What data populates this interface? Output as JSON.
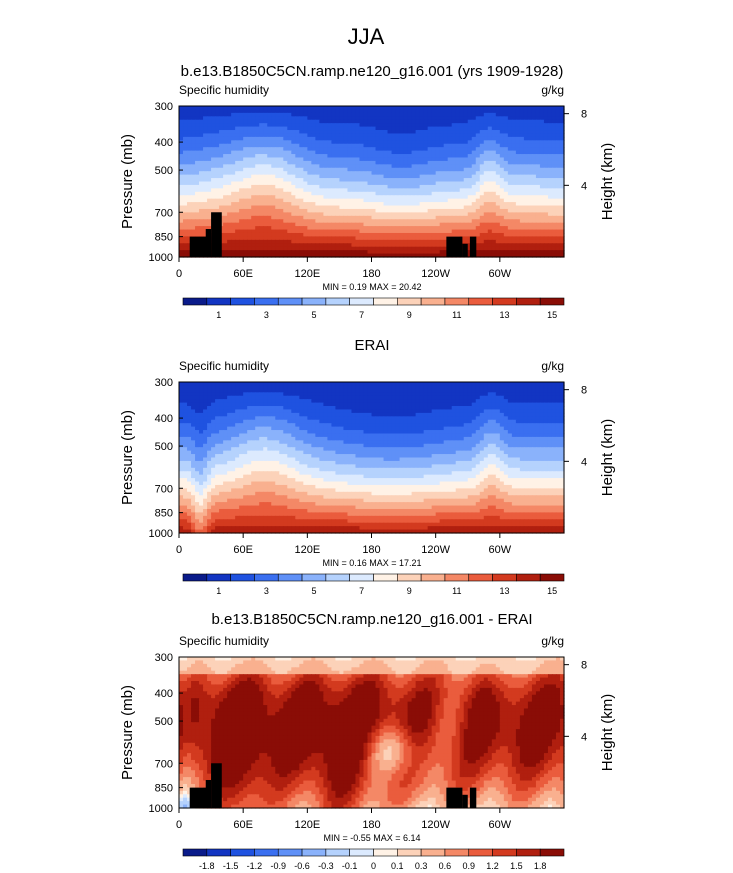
{
  "figure": {
    "title": "JJA"
  },
  "chart_data": [
    {
      "type": "heatmap",
      "title": "b.e13.B1850C5CN.ramp.ne120_g16.001 (yrs 1909-1928)",
      "left_label": "Specific humidity",
      "right_label": "g/kg",
      "ylabel": "Pressure (mb)",
      "ylabel_right": "Height (km)",
      "pressure_ticks": [
        300,
        400,
        500,
        700,
        850,
        1000
      ],
      "height_ticks": [
        4,
        8
      ],
      "lon_ticks": [
        "0",
        "60E",
        "120E",
        "180",
        "120W",
        "60W"
      ],
      "lon_range": [
        0,
        360
      ],
      "stats": "MIN =   0.19  MAX =  20.42",
      "colorbar": {
        "colors": [
          "#0a1b8a",
          "#1235c2",
          "#1f52e0",
          "#3a6ff0",
          "#5f90f7",
          "#8ab2fb",
          "#b5d2fd",
          "#dceafe",
          "#fff2e6",
          "#fcd2b9",
          "#f9b08f",
          "#f48866",
          "#ea5c3d",
          "#d33a1f",
          "#b01f0f",
          "#8a0d06"
        ],
        "labels": [
          "1",
          "3",
          "5",
          "7",
          "9",
          "11",
          "13",
          "15"
        ]
      },
      "value_range": [
        0.19,
        20.42
      ],
      "mask": "topography"
    },
    {
      "type": "heatmap",
      "title": "ERAI",
      "left_label": "Specific humidity",
      "right_label": "g/kg",
      "ylabel": "Pressure (mb)",
      "ylabel_right": "Height (km)",
      "pressure_ticks": [
        300,
        400,
        500,
        700,
        850,
        1000
      ],
      "height_ticks": [
        4,
        8
      ],
      "lon_ticks": [
        "0",
        "60E",
        "120E",
        "180",
        "120W",
        "60W"
      ],
      "lon_range": [
        0,
        360
      ],
      "stats": "MIN =   0.16  MAX =  17.21",
      "colorbar": {
        "colors": [
          "#0a1b8a",
          "#1235c2",
          "#1f52e0",
          "#3a6ff0",
          "#5f90f7",
          "#8ab2fb",
          "#b5d2fd",
          "#dceafe",
          "#fff2e6",
          "#fcd2b9",
          "#f9b08f",
          "#f48866",
          "#ea5c3d",
          "#d33a1f",
          "#b01f0f",
          "#8a0d06"
        ],
        "labels": [
          "1",
          "3",
          "5",
          "7",
          "9",
          "11",
          "13",
          "15"
        ]
      },
      "value_range": [
        0.16,
        17.21
      ],
      "mask": "none"
    },
    {
      "type": "heatmap",
      "title": "b.e13.B1850C5CN.ramp.ne120_g16.001 - ERAI",
      "left_label": "Specific humidity",
      "right_label": "g/kg",
      "ylabel": "Pressure (mb)",
      "ylabel_right": "Height (km)",
      "pressure_ticks": [
        300,
        400,
        500,
        700,
        850,
        1000
      ],
      "height_ticks": [
        4,
        8
      ],
      "lon_ticks": [
        "0",
        "60E",
        "120E",
        "180",
        "120W",
        "60W"
      ],
      "lon_range": [
        0,
        360
      ],
      "stats": "MIN =  -0.55  MAX =   6.14",
      "colorbar": {
        "colors": [
          "#0a1b8a",
          "#1235c2",
          "#1f52e0",
          "#3a6ff0",
          "#5f90f7",
          "#8ab2fb",
          "#b5d2fd",
          "#dceafe",
          "#fff2e6",
          "#fcd2b9",
          "#f9b08f",
          "#f48866",
          "#ea5c3d",
          "#d33a1f",
          "#b01f0f",
          "#8a0d06"
        ],
        "labels": [
          "-1.8",
          "-1.5",
          "-1.2",
          "-0.9",
          "-0.6",
          "-0.3",
          "-0.1",
          "0",
          "0.1",
          "0.3",
          "0.6",
          "0.9",
          "1.2",
          "1.5",
          "1.8"
        ]
      },
      "value_range": [
        -0.55,
        6.14
      ],
      "mask": "topography"
    }
  ]
}
